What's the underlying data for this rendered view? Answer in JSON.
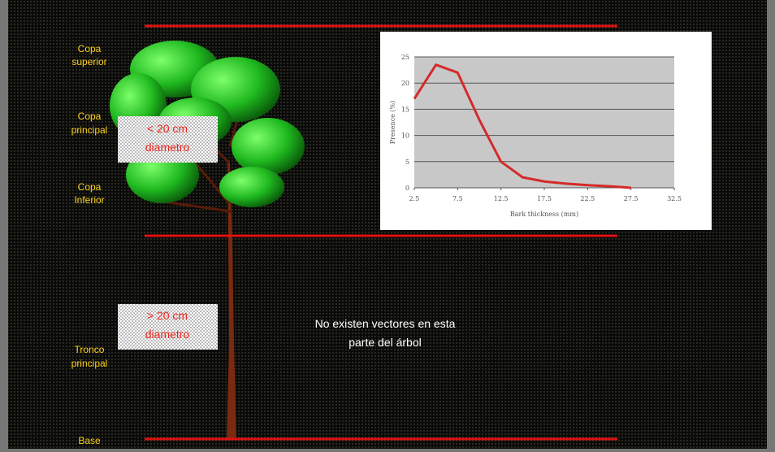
{
  "labels": [
    [
      "Copa",
      "superior"
    ],
    [
      "Copa",
      "principal"
    ],
    [
      "Copa",
      "Inferior"
    ],
    [
      "Tronco",
      "principal"
    ],
    [
      "Base"
    ]
  ],
  "boxes": [
    [
      "< 20 cm",
      "diametro"
    ],
    [
      "> 20 cm",
      "diametro"
    ]
  ],
  "note": [
    "No existen vectores en esta",
    "parte del árbol"
  ],
  "chart_data": {
    "type": "line",
    "xlabel": "Bark thickness (mm)",
    "ylabel": "Presence (%)",
    "x": [
      2.5,
      5,
      7.5,
      10,
      12.5,
      15,
      17.5,
      20,
      22.5,
      25,
      27.5
    ],
    "series": [
      {
        "color": "#d42a2a",
        "values": [
          17,
          23.5,
          22,
          13,
          5,
          2,
          1.2,
          0.8,
          0.5,
          0.3,
          0
        ]
      }
    ],
    "xlim": [
      2.5,
      32.5
    ],
    "xticks": [
      2.5,
      7.5,
      12.5,
      17.5,
      22.5,
      27.5,
      32.5
    ],
    "ylim": [
      0,
      25
    ],
    "yticks": [
      0,
      5,
      10,
      15,
      20,
      25
    ],
    "grid": true
  }
}
